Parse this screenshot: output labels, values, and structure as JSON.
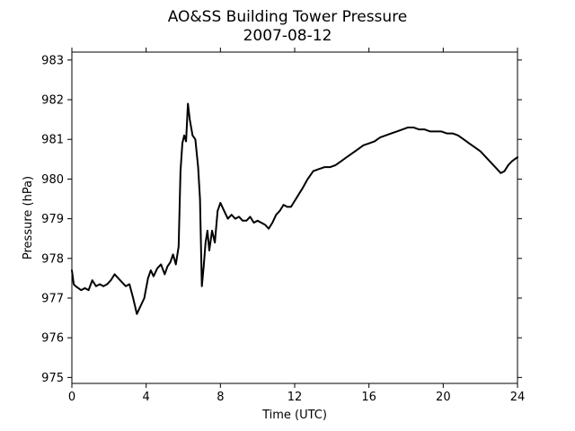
{
  "chart_data": {
    "type": "line",
    "title": "AO&SS Building Tower Pressure",
    "subtitle": "2007-08-12",
    "xlabel": "Time (UTC)",
    "ylabel": "Pressure (hPa)",
    "xlim": [
      0,
      24
    ],
    "ylim": [
      974.85,
      983.2
    ],
    "x_ticks": [
      0,
      4,
      8,
      12,
      16,
      20,
      24
    ],
    "y_ticks": [
      975,
      976,
      977,
      978,
      979,
      980,
      981,
      982,
      983
    ],
    "grid": false,
    "legend": "none",
    "line_color": "#000000",
    "series": [
      {
        "x": [
          0,
          0.1,
          0.2,
          0.35,
          0.5,
          0.7,
          0.9,
          1.1,
          1.3,
          1.5,
          1.7,
          1.9,
          2.1,
          2.3,
          2.5,
          2.7,
          2.9,
          3.1,
          3.3,
          3.5,
          3.7,
          3.9,
          4.1,
          4.25,
          4.4,
          4.6,
          4.8,
          5.0,
          5.15,
          5.3,
          5.45,
          5.6,
          5.75,
          5.85,
          5.95,
          6.05,
          6.15,
          6.25,
          6.35,
          6.5,
          6.65,
          6.8,
          6.9,
          7.0,
          7.1,
          7.2,
          7.3,
          7.4,
          7.55,
          7.7,
          7.85,
          8.0,
          8.2,
          8.4,
          8.6,
          8.8,
          9.0,
          9.2,
          9.4,
          9.6,
          9.8,
          10.0,
          10.2,
          10.4,
          10.6,
          10.8,
          11.0,
          11.2,
          11.4,
          11.6,
          11.8,
          12.0,
          12.2,
          12.4,
          12.7,
          13.0,
          13.3,
          13.6,
          13.9,
          14.2,
          14.5,
          14.8,
          15.1,
          15.4,
          15.7,
          16.0,
          16.3,
          16.6,
          16.9,
          17.2,
          17.5,
          17.8,
          18.1,
          18.4,
          18.7,
          19.0,
          19.3,
          19.6,
          19.9,
          20.2,
          20.5,
          20.8,
          21.1,
          21.4,
          21.7,
          22.0,
          22.3,
          22.6,
          22.9,
          23.1,
          23.3,
          23.5,
          23.7,
          23.85,
          24.0
        ],
        "values": [
          977.7,
          977.35,
          977.3,
          977.25,
          977.2,
          977.25,
          977.2,
          977.45,
          977.3,
          977.35,
          977.3,
          977.35,
          977.45,
          977.6,
          977.5,
          977.4,
          977.3,
          977.35,
          977.0,
          976.6,
          976.8,
          977.0,
          977.5,
          977.7,
          977.55,
          977.75,
          977.85,
          977.6,
          977.8,
          977.9,
          978.1,
          977.85,
          978.3,
          980.2,
          980.9,
          981.1,
          980.95,
          981.9,
          981.5,
          981.1,
          981.0,
          980.3,
          979.5,
          977.3,
          977.8,
          978.4,
          978.7,
          978.2,
          978.7,
          978.4,
          979.2,
          979.4,
          979.2,
          979.0,
          979.1,
          979.0,
          979.05,
          978.95,
          978.95,
          979.05,
          978.9,
          978.95,
          978.9,
          978.85,
          978.75,
          978.9,
          979.1,
          979.2,
          979.35,
          979.3,
          979.3,
          979.45,
          979.6,
          979.75,
          980.0,
          980.2,
          980.25,
          980.3,
          980.3,
          980.35,
          980.45,
          980.55,
          980.65,
          980.75,
          980.85,
          980.9,
          980.95,
          981.05,
          981.1,
          981.15,
          981.2,
          981.25,
          981.3,
          981.3,
          981.25,
          981.25,
          981.2,
          981.2,
          981.2,
          981.15,
          981.15,
          981.1,
          981.0,
          980.9,
          980.8,
          980.7,
          980.55,
          980.4,
          980.25,
          980.15,
          980.2,
          980.35,
          980.45,
          980.5,
          980.55
        ]
      }
    ]
  }
}
